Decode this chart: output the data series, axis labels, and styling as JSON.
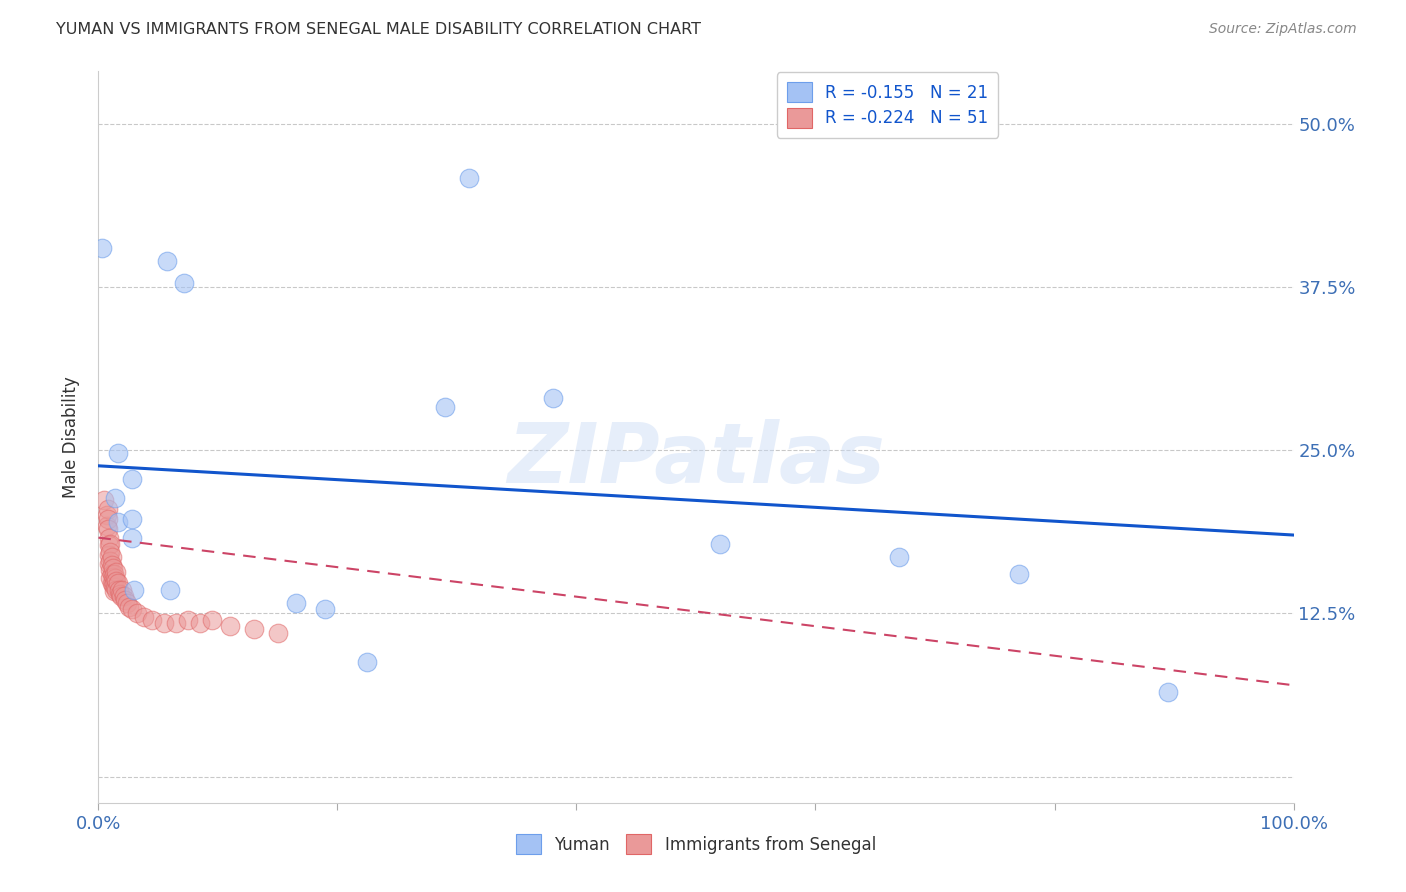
{
  "title": "YUMAN VS IMMIGRANTS FROM SENEGAL MALE DISABILITY CORRELATION CHART",
  "source": "Source: ZipAtlas.com",
  "ylabel": "Male Disability",
  "xlim": [
    0.0,
    1.0
  ],
  "ylim": [
    -0.02,
    0.54
  ],
  "yticks": [
    0.0,
    0.125,
    0.25,
    0.375,
    0.5
  ],
  "ytick_labels_right": [
    "",
    "12.5%",
    "25.0%",
    "37.5%",
    "50.0%"
  ],
  "xticks": [
    0.0,
    0.2,
    0.4,
    0.6,
    0.8,
    1.0
  ],
  "xtick_labels": [
    "0.0%",
    "",
    "",
    "",
    "",
    "100.0%"
  ],
  "legend_r1_text": "R = -0.155   N = 21",
  "legend_r2_text": "R = -0.224   N = 51",
  "blue_color": "#a4c2f4",
  "blue_edge_color": "#6d9eeb",
  "pink_color": "#ea9999",
  "pink_edge_color": "#e06666",
  "trendline_blue_color": "#1155cc",
  "trendline_pink_color": "#cc4466",
  "watermark": "ZIPatlas",
  "blue_points": [
    [
      0.003,
      0.405
    ],
    [
      0.057,
      0.395
    ],
    [
      0.072,
      0.378
    ],
    [
      0.31,
      0.458
    ],
    [
      0.016,
      0.248
    ],
    [
      0.028,
      0.228
    ],
    [
      0.29,
      0.283
    ],
    [
      0.38,
      0.29
    ],
    [
      0.52,
      0.178
    ],
    [
      0.67,
      0.168
    ],
    [
      0.77,
      0.155
    ],
    [
      0.895,
      0.065
    ],
    [
      0.014,
      0.213
    ],
    [
      0.016,
      0.195
    ],
    [
      0.165,
      0.133
    ],
    [
      0.19,
      0.128
    ],
    [
      0.225,
      0.088
    ],
    [
      0.028,
      0.183
    ],
    [
      0.028,
      0.197
    ],
    [
      0.03,
      0.143
    ],
    [
      0.06,
      0.143
    ]
  ],
  "pink_points": [
    [
      0.005,
      0.212
    ],
    [
      0.007,
      0.2
    ],
    [
      0.007,
      0.192
    ],
    [
      0.008,
      0.205
    ],
    [
      0.008,
      0.197
    ],
    [
      0.008,
      0.19
    ],
    [
      0.009,
      0.183
    ],
    [
      0.009,
      0.177
    ],
    [
      0.009,
      0.17
    ],
    [
      0.009,
      0.163
    ],
    [
      0.01,
      0.178
    ],
    [
      0.01,
      0.172
    ],
    [
      0.01,
      0.165
    ],
    [
      0.01,
      0.158
    ],
    [
      0.01,
      0.152
    ],
    [
      0.011,
      0.168
    ],
    [
      0.011,
      0.162
    ],
    [
      0.011,
      0.155
    ],
    [
      0.011,
      0.148
    ],
    [
      0.012,
      0.16
    ],
    [
      0.012,
      0.153
    ],
    [
      0.012,
      0.147
    ],
    [
      0.013,
      0.155
    ],
    [
      0.013,
      0.148
    ],
    [
      0.013,
      0.142
    ],
    [
      0.014,
      0.152
    ],
    [
      0.014,
      0.145
    ],
    [
      0.015,
      0.157
    ],
    [
      0.015,
      0.15
    ],
    [
      0.015,
      0.143
    ],
    [
      0.016,
      0.148
    ],
    [
      0.017,
      0.143
    ],
    [
      0.018,
      0.14
    ],
    [
      0.019,
      0.138
    ],
    [
      0.02,
      0.143
    ],
    [
      0.021,
      0.138
    ],
    [
      0.022,
      0.135
    ],
    [
      0.024,
      0.133
    ],
    [
      0.026,
      0.13
    ],
    [
      0.028,
      0.128
    ],
    [
      0.032,
      0.125
    ],
    [
      0.038,
      0.122
    ],
    [
      0.045,
      0.12
    ],
    [
      0.055,
      0.118
    ],
    [
      0.065,
      0.118
    ],
    [
      0.075,
      0.12
    ],
    [
      0.085,
      0.118
    ],
    [
      0.095,
      0.12
    ],
    [
      0.11,
      0.115
    ],
    [
      0.13,
      0.113
    ],
    [
      0.15,
      0.11
    ]
  ],
  "blue_trendline": [
    [
      0.0,
      0.238
    ],
    [
      1.0,
      0.185
    ]
  ],
  "pink_trendline": [
    [
      0.0,
      0.183
    ],
    [
      1.0,
      0.07
    ]
  ]
}
